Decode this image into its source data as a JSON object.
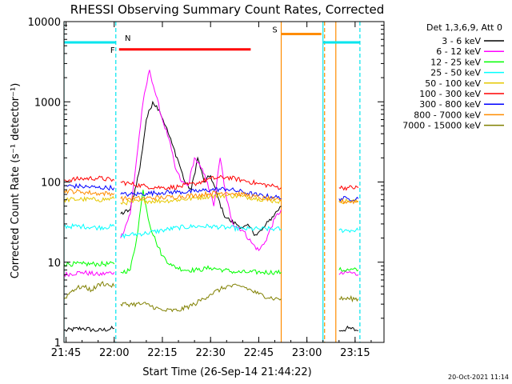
{
  "chart_data": {
    "type": "line",
    "title": "RHESSI Observing Summary Count Rates, Corrected",
    "xlabel": "Start Time (26-Sep-14 21:44:22)",
    "ylabel": "Corrected Count Rate (s⁻¹ detector⁻¹)",
    "y_scale": "log",
    "ylim": [
      1,
      10000
    ],
    "xlim": [
      "21:44:22",
      "23:24:00"
    ],
    "x_ticks": [
      "21:45",
      "22:00",
      "22:15",
      "22:30",
      "22:45",
      "23:00",
      "23:15"
    ],
    "y_ticks": [
      "1",
      "10",
      "100",
      "1000",
      "10000"
    ],
    "legend_title": "Det 1,3,6,9, Att 0",
    "legend_position": "right",
    "timestamp": "20-Oct-2021 11:14",
    "flags": [
      {
        "label": "N",
        "color": "#00e5ee",
        "spans": [
          [
            "21:44:22",
            "22:00:30"
          ],
          [
            "23:05:00",
            "23:16:30"
          ]
        ],
        "level": 5500
      },
      {
        "label": "F",
        "color": "#ff0000",
        "spans": [
          [
            "22:01:30",
            "22:42:30"
          ]
        ],
        "level": 4500
      },
      {
        "label": "S",
        "color": "#ff8c00",
        "spans": [
          [
            "22:52:00",
            "23:04:30"
          ]
        ],
        "level": 7000
      }
    ],
    "markers": [
      {
        "color": "#00e5ee",
        "style": "solid",
        "times": [
          "21:44:22",
          "23:05:00"
        ]
      },
      {
        "color": "#00e5ee",
        "style": "dashed",
        "times": [
          "22:00:30",
          "23:16:30"
        ]
      },
      {
        "color": "#ff8c00",
        "style": "solid",
        "times": [
          "22:52:00",
          "23:09:00"
        ]
      },
      {
        "color": "#ff8c00",
        "style": "dashed",
        "times": [
          "23:05:30"
        ]
      }
    ],
    "series": [
      {
        "name": "3 - 6 keV",
        "color": "#000000",
        "values": [
          [
            "21:44:22",
            1.4
          ],
          [
            "21:50",
            1.5
          ],
          [
            "21:55",
            1.4
          ],
          [
            "22:00",
            1.5
          ],
          [
            "22:00:30",
            null
          ],
          [
            "22:02",
            40
          ],
          [
            "22:05",
            45
          ],
          [
            "22:08",
            150
          ],
          [
            "22:10",
            600
          ],
          [
            "22:12",
            1000
          ],
          [
            "22:14",
            800
          ],
          [
            "22:16",
            500
          ],
          [
            "22:18",
            300
          ],
          [
            "22:20",
            180
          ],
          [
            "22:22",
            100
          ],
          [
            "22:24",
            80
          ],
          [
            "22:26",
            200
          ],
          [
            "22:28",
            100
          ],
          [
            "22:30",
            120
          ],
          [
            "22:32",
            70
          ],
          [
            "22:34",
            40
          ],
          [
            "22:36",
            33
          ],
          [
            "22:38",
            30
          ],
          [
            "22:40",
            27
          ],
          [
            "22:42",
            28
          ],
          [
            "22:44",
            22
          ],
          [
            "22:46",
            25
          ],
          [
            "22:48",
            32
          ],
          [
            "22:50",
            40
          ],
          [
            "22:52",
            50
          ],
          [
            "22:52:30",
            null
          ],
          [
            "23:10",
            1.4
          ],
          [
            "23:13",
            1.5
          ],
          [
            "23:16",
            1.4
          ]
        ]
      },
      {
        "name": "6 - 12 keV",
        "color": "#ff00ff",
        "values": [
          [
            "21:44:22",
            7
          ],
          [
            "21:50",
            7.5
          ],
          [
            "21:55",
            7
          ],
          [
            "22:00",
            7.5
          ],
          [
            "22:00:30",
            null
          ],
          [
            "22:02",
            20
          ],
          [
            "22:05",
            40
          ],
          [
            "22:07",
            200
          ],
          [
            "22:09",
            1000
          ],
          [
            "22:11",
            2500
          ],
          [
            "22:13",
            1200
          ],
          [
            "22:15",
            600
          ],
          [
            "22:17",
            350
          ],
          [
            "22:19",
            150
          ],
          [
            "22:21",
            100
          ],
          [
            "22:23",
            90
          ],
          [
            "22:25",
            200
          ],
          [
            "22:27",
            150
          ],
          [
            "22:29",
            100
          ],
          [
            "22:31",
            50
          ],
          [
            "22:33",
            200
          ],
          [
            "22:35",
            60
          ],
          [
            "22:37",
            30
          ],
          [
            "22:40",
            25
          ],
          [
            "22:43",
            17
          ],
          [
            "22:45",
            14
          ],
          [
            "22:47",
            18
          ],
          [
            "22:50",
            35
          ],
          [
            "22:52",
            45
          ],
          [
            "22:52:30",
            null
          ],
          [
            "23:10",
            7
          ],
          [
            "23:13",
            7.5
          ],
          [
            "23:16",
            7
          ]
        ]
      },
      {
        "name": "12 - 25 keV",
        "color": "#00ff00",
        "values": [
          [
            "21:44:22",
            9.5
          ],
          [
            "21:50",
            9.5
          ],
          [
            "21:55",
            9.5
          ],
          [
            "22:00",
            9.5
          ],
          [
            "22:00:30",
            null
          ],
          [
            "22:02",
            7.5
          ],
          [
            "22:05",
            8
          ],
          [
            "22:07",
            20
          ],
          [
            "22:09",
            80
          ],
          [
            "22:11",
            30
          ],
          [
            "22:13",
            18
          ],
          [
            "22:15",
            12
          ],
          [
            "22:18",
            9
          ],
          [
            "22:22",
            8
          ],
          [
            "22:26",
            8
          ],
          [
            "22:30",
            8.5
          ],
          [
            "22:34",
            8
          ],
          [
            "22:38",
            7.5
          ],
          [
            "22:42",
            7.5
          ],
          [
            "22:46",
            7.5
          ],
          [
            "22:50",
            7.5
          ],
          [
            "22:52",
            7.5
          ],
          [
            "22:52:30",
            null
          ],
          [
            "23:10",
            8
          ],
          [
            "23:13",
            8
          ],
          [
            "23:16",
            8
          ]
        ]
      },
      {
        "name": "25 - 50 keV",
        "color": "#00ffff",
        "values": [
          [
            "21:44:22",
            28
          ],
          [
            "21:50",
            28
          ],
          [
            "21:55",
            27
          ],
          [
            "22:00",
            28
          ],
          [
            "22:00:30",
            null
          ],
          [
            "22:02",
            21
          ],
          [
            "22:05",
            22
          ],
          [
            "22:10",
            23
          ],
          [
            "22:15",
            25
          ],
          [
            "22:20",
            27
          ],
          [
            "22:25",
            28
          ],
          [
            "22:30",
            28
          ],
          [
            "22:35",
            27
          ],
          [
            "22:40",
            26
          ],
          [
            "22:45",
            26
          ],
          [
            "22:50",
            26
          ],
          [
            "22:52",
            26
          ],
          [
            "22:52:30",
            null
          ],
          [
            "23:10",
            25
          ],
          [
            "23:13",
            25
          ],
          [
            "23:16",
            25
          ]
        ]
      },
      {
        "name": "50 - 100 keV",
        "color": "#e6c800",
        "values": [
          [
            "21:44:22",
            60
          ],
          [
            "21:50",
            61
          ],
          [
            "21:55",
            60
          ],
          [
            "22:00",
            62
          ],
          [
            "22:00:30",
            null
          ],
          [
            "22:02",
            55
          ],
          [
            "22:05",
            56
          ],
          [
            "22:10",
            58
          ],
          [
            "22:15",
            58
          ],
          [
            "22:20",
            60
          ],
          [
            "22:25",
            63
          ],
          [
            "22:30",
            67
          ],
          [
            "22:35",
            68
          ],
          [
            "22:40",
            66
          ],
          [
            "22:45",
            62
          ],
          [
            "22:50",
            58
          ],
          [
            "22:52",
            57
          ],
          [
            "22:52:30",
            null
          ],
          [
            "23:10",
            57
          ],
          [
            "23:13",
            58
          ],
          [
            "23:16",
            57
          ]
        ]
      },
      {
        "name": "100 - 300 keV",
        "color": "#ff0000",
        "values": [
          [
            "21:44:22",
            105
          ],
          [
            "21:50",
            110
          ],
          [
            "21:55",
            112
          ],
          [
            "22:00",
            105
          ],
          [
            "22:00:30",
            null
          ],
          [
            "22:02",
            100
          ],
          [
            "22:05",
            95
          ],
          [
            "22:10",
            88
          ],
          [
            "22:15",
            85
          ],
          [
            "22:20",
            87
          ],
          [
            "22:25",
            95
          ],
          [
            "22:30",
            110
          ],
          [
            "22:35",
            115
          ],
          [
            "22:40",
            105
          ],
          [
            "22:45",
            95
          ],
          [
            "22:50",
            88
          ],
          [
            "22:52",
            85
          ],
          [
            "22:52:30",
            null
          ],
          [
            "23:10",
            85
          ],
          [
            "23:13",
            85
          ],
          [
            "23:16",
            85
          ]
        ]
      },
      {
        "name": "300 - 800 keV",
        "color": "#0000ff",
        "values": [
          [
            "21:44:22",
            90
          ],
          [
            "21:50",
            88
          ],
          [
            "21:55",
            85
          ],
          [
            "22:00",
            85
          ],
          [
            "22:00:30",
            null
          ],
          [
            "22:02",
            70
          ],
          [
            "22:05",
            70
          ],
          [
            "22:10",
            72
          ],
          [
            "22:15",
            74
          ],
          [
            "22:20",
            75
          ],
          [
            "22:25",
            76
          ],
          [
            "22:30",
            80
          ],
          [
            "22:35",
            82
          ],
          [
            "22:40",
            75
          ],
          [
            "22:45",
            68
          ],
          [
            "22:50",
            65
          ],
          [
            "22:52",
            62
          ],
          [
            "22:52:30",
            null
          ],
          [
            "23:10",
            62
          ],
          [
            "23:13",
            62
          ],
          [
            "23:16",
            62
          ]
        ]
      },
      {
        "name": "800 - 7000 keV",
        "color": "#ff8c00",
        "values": [
          [
            "21:44:22",
            78
          ],
          [
            "21:50",
            75
          ],
          [
            "21:55",
            72
          ],
          [
            "22:00",
            72
          ],
          [
            "22:00:30",
            null
          ],
          [
            "22:02",
            62
          ],
          [
            "22:05",
            62
          ],
          [
            "22:10",
            63
          ],
          [
            "22:15",
            64
          ],
          [
            "22:20",
            66
          ],
          [
            "22:25",
            68
          ],
          [
            "22:30",
            72
          ],
          [
            "22:35",
            74
          ],
          [
            "22:40",
            70
          ],
          [
            "22:45",
            64
          ],
          [
            "22:50",
            60
          ],
          [
            "22:52",
            58
          ],
          [
            "22:52:30",
            null
          ],
          [
            "23:10",
            57
          ],
          [
            "23:13",
            57
          ],
          [
            "23:16",
            57
          ]
        ]
      },
      {
        "name": "7000 - 15000 keV",
        "color": "#808000",
        "values": [
          [
            "21:44:22",
            3.5
          ],
          [
            "21:47",
            4.5
          ],
          [
            "21:50",
            5
          ],
          [
            "21:53",
            4.5
          ],
          [
            "21:56",
            5.5
          ],
          [
            "22:00",
            5
          ],
          [
            "22:00:30",
            null
          ],
          [
            "22:02",
            3
          ],
          [
            "22:05",
            3
          ],
          [
            "22:10",
            3
          ],
          [
            "22:15",
            2.5
          ],
          [
            "22:20",
            2.5
          ],
          [
            "22:25",
            3
          ],
          [
            "22:30",
            4
          ],
          [
            "22:35",
            5
          ],
          [
            "22:40",
            5
          ],
          [
            "22:45",
            4
          ],
          [
            "22:50",
            3.5
          ],
          [
            "22:52",
            3.5
          ],
          [
            "22:52:30",
            null
          ],
          [
            "23:10",
            3.5
          ],
          [
            "23:13",
            3.5
          ],
          [
            "23:16",
            3.5
          ]
        ]
      }
    ]
  }
}
